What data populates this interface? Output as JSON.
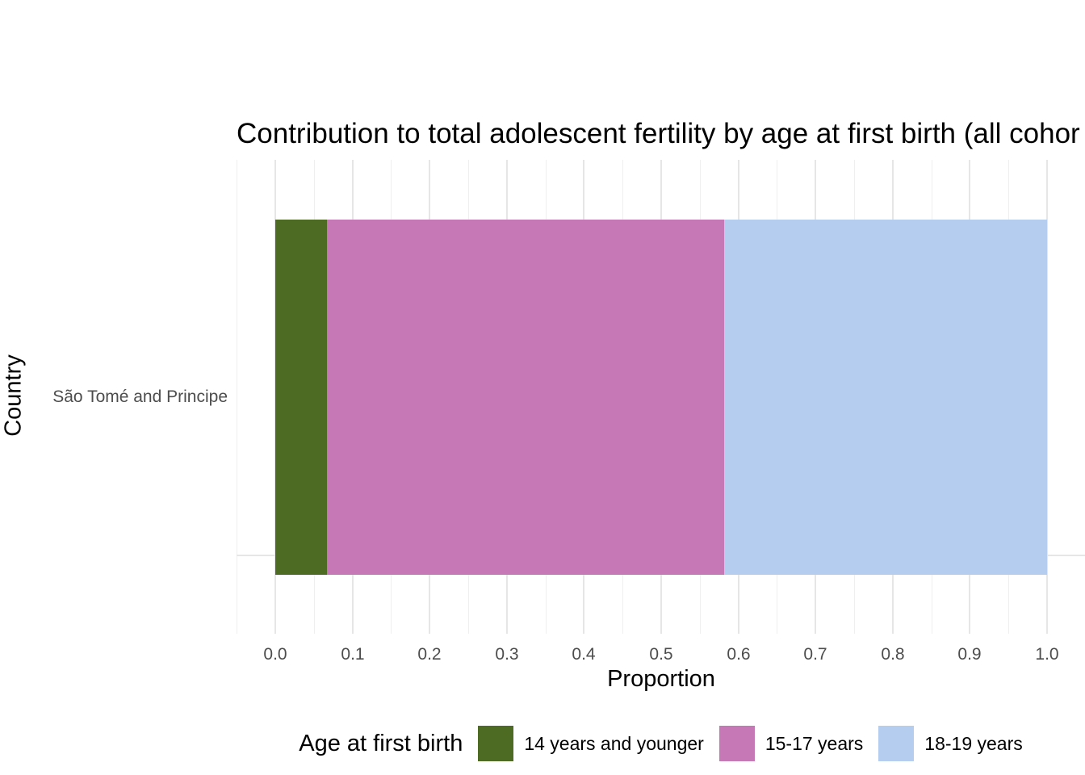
{
  "title": "Contribution to total adolescent fertility by age at first birth (all cohor",
  "chart_data": {
    "type": "bar",
    "orientation": "horizontal",
    "stacked": true,
    "title": "Contribution to total adolescent fertility by age at first birth (all cohor",
    "xlabel": "Proportion",
    "ylabel": "Country",
    "categories": [
      "São Tomé and Principe"
    ],
    "series": [
      {
        "name": "14 years and younger",
        "color": "#4D6B22",
        "values": [
          0.067
        ]
      },
      {
        "name": "15-17 years",
        "color": "#C678B6",
        "values": [
          0.515
        ]
      },
      {
        "name": "18-19 years",
        "color": "#B5CEEF",
        "values": [
          0.418
        ]
      }
    ],
    "xlim": [
      -0.05,
      1.05
    ],
    "x_ticks": [
      "0.0",
      "0.1",
      "0.2",
      "0.3",
      "0.4",
      "0.5",
      "0.6",
      "0.7",
      "0.8",
      "0.9",
      "1.0"
    ],
    "x_tick_values": [
      0,
      0.1,
      0.2,
      0.3,
      0.4,
      0.5,
      0.6,
      0.7,
      0.8,
      0.9,
      1.0
    ],
    "minor_grid_step": 0.05,
    "grid": "vertical major+minor, horizontal major",
    "legend_title": "Age at first birth",
    "legend_position": "bottom",
    "panel_background": "#ffffff",
    "gridline_color": "#e6e6e6"
  }
}
